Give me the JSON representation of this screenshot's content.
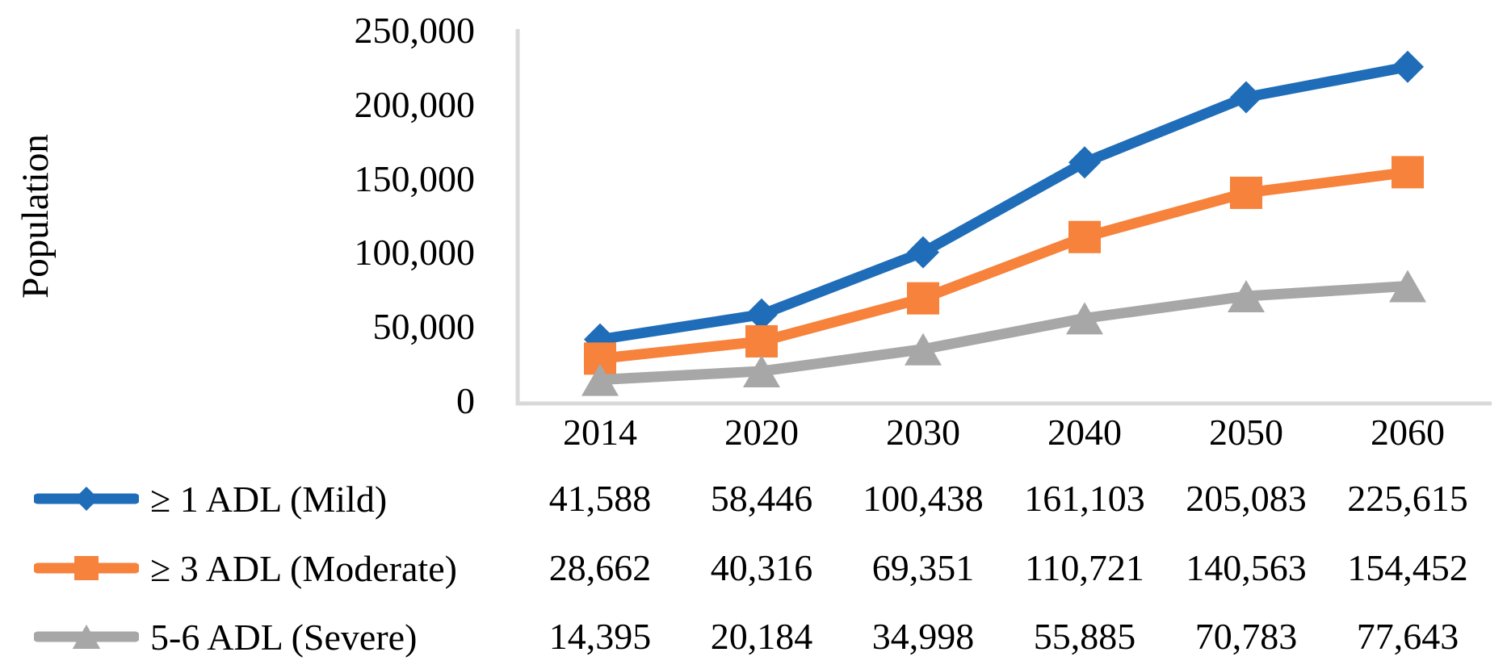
{
  "chart_data": {
    "type": "line",
    "title": "",
    "xlabel": "",
    "ylabel": "Population",
    "categories": [
      "2014",
      "2020",
      "2030",
      "2040",
      "2050",
      "2060"
    ],
    "series": [
      {
        "name": "≥ 1 ADL (Mild)",
        "marker": "diamond",
        "color": "#1F6DB8",
        "values": [
          41588,
          58446,
          100438,
          161103,
          205083,
          225615
        ],
        "value_labels": [
          "41,588",
          "58,446",
          "100,438",
          "161,103",
          "205,083",
          "225,615"
        ]
      },
      {
        "name": "≥ 3 ADL (Moderate)",
        "marker": "square",
        "color": "#F6823B",
        "values": [
          28662,
          40316,
          69351,
          110721,
          140563,
          154452
        ],
        "value_labels": [
          "28,662",
          "40,316",
          "69,351",
          "110,721",
          "140,563",
          "154,452"
        ]
      },
      {
        "name": "5-6 ADL (Severe)",
        "marker": "triangle",
        "color": "#A7A7A7",
        "values": [
          14395,
          20184,
          34998,
          55885,
          70783,
          77643
        ],
        "value_labels": [
          "14,395",
          "20,184",
          "34,998",
          "55,885",
          "70,783",
          "77,643"
        ]
      }
    ],
    "y_ticks": [
      {
        "label": "250,000",
        "value": 250000
      },
      {
        "label": "200,000",
        "value": 200000
      },
      {
        "label": "150,000",
        "value": 150000
      },
      {
        "label": "100,000",
        "value": 100000
      },
      {
        "label": "50,000",
        "value": 50000
      },
      {
        "label": "0",
        "value": 0
      }
    ],
    "ylim": [
      0,
      250000
    ],
    "grid": false,
    "legend_position": "bottom-left, one row per series beside data table rows",
    "axis_color": "#D9D9D9",
    "text_color": "#000000",
    "background_color": "#FFFFFF"
  }
}
